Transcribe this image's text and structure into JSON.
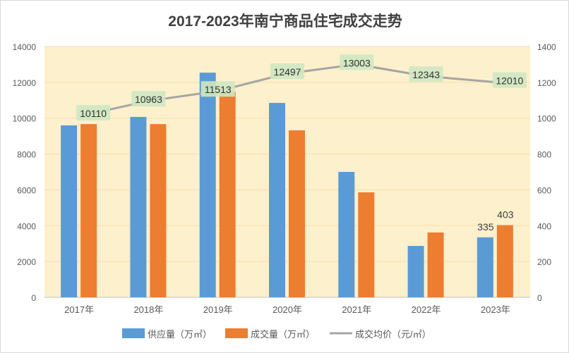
{
  "chart_data": {
    "type": "bar",
    "title": "2017-2023年南宁商品住宅成交走势",
    "categories": [
      "2017年",
      "2018年",
      "2019年",
      "2020年",
      "2021年",
      "2022年",
      "2023年"
    ],
    "left_axis": {
      "ylim": [
        0,
        14000
      ],
      "ticks": [
        "0",
        "2000",
        "4000",
        "6000",
        "8000",
        "10000",
        "12000",
        "14000"
      ]
    },
    "right_axis": {
      "ylim": [
        0,
        1400
      ],
      "ticks": [
        "0",
        "200",
        "400",
        "600",
        "800",
        "1000",
        "1200",
        "1400"
      ]
    },
    "series": [
      {
        "name": "供应量（万㎡）",
        "type": "bar",
        "axis": "right",
        "color": "#5b9bd5",
        "values": [
          960,
          1007,
          1254,
          1085,
          700,
          287,
          335
        ]
      },
      {
        "name": "成交量（万㎡）",
        "type": "bar",
        "axis": "right",
        "color": "#ed7d31",
        "values": [
          967,
          967,
          1148,
          932,
          586,
          362,
          403
        ]
      },
      {
        "name": "成交均价（元/㎡）",
        "type": "line",
        "axis": "left",
        "color": "#a5a5a5",
        "values": [
          10110,
          10963,
          11513,
          12497,
          13003,
          12343,
          12010
        ]
      }
    ],
    "bar_labels": {
      "1": {
        "6": "403"
      },
      "0": {
        "6": "335"
      }
    },
    "line_labels": [
      "10110",
      "10963",
      "11513",
      "12497",
      "13003",
      "12343",
      "12010"
    ],
    "legend": "bottom",
    "grid": true,
    "plot_bg": "#fdf0cc"
  }
}
